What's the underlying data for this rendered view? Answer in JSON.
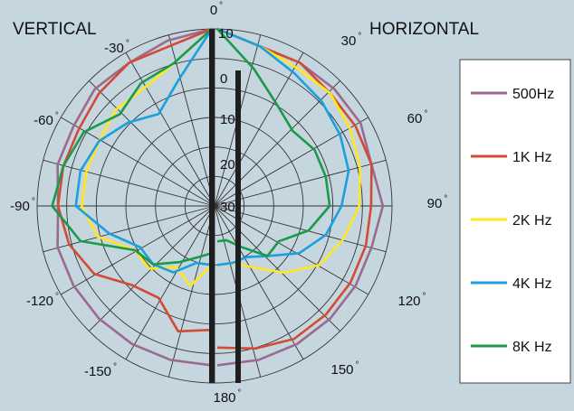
{
  "chart_data": {
    "type": "polar",
    "title": "",
    "panels": [
      "VERTICAL",
      "HORIZONTAL"
    ],
    "radial_ticks": [
      "10",
      "0",
      "10",
      "20",
      "30"
    ],
    "angle_labels": [
      "0",
      "30",
      "60",
      "90",
      "120",
      "150",
      "180",
      "-30",
      "-60",
      "-90",
      "-120",
      "-150"
    ],
    "degree_symbol": "°",
    "legend_placement": "right",
    "angle_step_deg": 15,
    "radial_range_db": [
      0,
      -30
    ],
    "series": [
      {
        "name": "500Hz",
        "color": "#9b6a8e",
        "horizontal": [
          [
            0,
            0
          ],
          [
            15,
            -2
          ],
          [
            30,
            -2
          ],
          [
            45,
            -2
          ],
          [
            60,
            -2
          ],
          [
            75,
            -3
          ],
          [
            90,
            -2
          ],
          [
            105,
            -3
          ],
          [
            120,
            -3
          ],
          [
            135,
            -3
          ],
          [
            150,
            -3
          ],
          [
            165,
            -3
          ],
          [
            180,
            -3
          ]
        ],
        "vertical": [
          [
            0,
            0
          ],
          [
            15,
            -1
          ],
          [
            30,
            -2
          ],
          [
            45,
            -2
          ],
          [
            60,
            -3
          ],
          [
            75,
            -3
          ],
          [
            90,
            -4
          ],
          [
            105,
            -3
          ],
          [
            120,
            -3
          ],
          [
            135,
            -3
          ],
          [
            150,
            -3
          ],
          [
            165,
            -3
          ],
          [
            180,
            -3
          ]
        ]
      },
      {
        "name": "1K Hz",
        "color": "#d24b35",
        "horizontal": [
          [
            0,
            0
          ],
          [
            15,
            -2
          ],
          [
            30,
            -2
          ],
          [
            45,
            -3
          ],
          [
            60,
            -3
          ],
          [
            75,
            -3
          ],
          [
            90,
            -4
          ],
          [
            105,
            -4
          ],
          [
            120,
            -4
          ],
          [
            135,
            -4
          ],
          [
            150,
            -4
          ],
          [
            165,
            -5
          ],
          [
            180,
            -6
          ]
        ],
        "vertical": [
          [
            0,
            0
          ],
          [
            15,
            -2
          ],
          [
            30,
            -2
          ],
          [
            45,
            -3
          ],
          [
            60,
            -4
          ],
          [
            75,
            -4
          ],
          [
            90,
            -4
          ],
          [
            105,
            -5
          ],
          [
            120,
            -7
          ],
          [
            135,
            -11
          ],
          [
            150,
            -12
          ],
          [
            165,
            -8
          ],
          [
            180,
            -9
          ]
        ]
      },
      {
        "name": "2K Hz",
        "color": "#ffe620",
        "horizontal": [
          [
            0,
            0
          ],
          [
            15,
            -2
          ],
          [
            30,
            -3
          ],
          [
            45,
            -3
          ],
          [
            60,
            -4
          ],
          [
            75,
            -5
          ],
          [
            90,
            -6
          ],
          [
            105,
            -8
          ],
          [
            120,
            -10
          ],
          [
            135,
            -14
          ],
          [
            150,
            -18
          ],
          [
            165,
            -20
          ],
          [
            180,
            -20
          ]
        ],
        "vertical": [
          [
            0,
            0
          ],
          [
            15,
            -5
          ],
          [
            30,
            -7
          ],
          [
            45,
            -7
          ],
          [
            60,
            -8
          ],
          [
            75,
            -8
          ],
          [
            90,
            -8
          ],
          [
            105,
            -10
          ],
          [
            120,
            -15
          ],
          [
            135,
            -15
          ],
          [
            150,
            -18
          ],
          [
            165,
            -16
          ],
          [
            180,
            -20
          ]
        ]
      },
      {
        "name": "4K Hz",
        "color": "#1aa0dc",
        "horizontal": [
          [
            0,
            0
          ],
          [
            15,
            -2
          ],
          [
            30,
            -4
          ],
          [
            45,
            -5
          ],
          [
            60,
            -6
          ],
          [
            75,
            -7
          ],
          [
            90,
            -9
          ],
          [
            105,
            -11
          ],
          [
            120,
            -14
          ],
          [
            135,
            -18
          ],
          [
            150,
            -20
          ],
          [
            165,
            -20
          ],
          [
            180,
            -20
          ]
        ],
        "vertical": [
          [
            0,
            0
          ],
          [
            15,
            -8
          ],
          [
            30,
            -12
          ],
          [
            45,
            -10
          ],
          [
            60,
            -8
          ],
          [
            75,
            -7
          ],
          [
            90,
            -7
          ],
          [
            105,
            -12
          ],
          [
            120,
            -16
          ],
          [
            135,
            -16
          ],
          [
            150,
            -17
          ],
          [
            165,
            -20
          ],
          [
            180,
            -20
          ]
        ]
      },
      {
        "name": "8K Hz",
        "color": "#1a9a4a",
        "horizontal": [
          [
            0,
            0
          ],
          [
            15,
            -6
          ],
          [
            30,
            -10
          ],
          [
            45,
            -12
          ],
          [
            60,
            -11
          ],
          [
            75,
            -11
          ],
          [
            90,
            -11
          ],
          [
            105,
            -14
          ],
          [
            120,
            -18
          ],
          [
            135,
            -18
          ],
          [
            150,
            -22
          ],
          [
            165,
            -24
          ],
          [
            180,
            -24
          ]
        ],
        "vertical": [
          [
            0,
            0
          ],
          [
            15,
            -5
          ],
          [
            30,
            -6
          ],
          [
            45,
            -8
          ],
          [
            60,
            -5
          ],
          [
            75,
            -4
          ],
          [
            90,
            -3
          ],
          [
            105,
            -7
          ],
          [
            120,
            -15
          ],
          [
            135,
            -16
          ],
          [
            150,
            -19
          ],
          [
            165,
            -21
          ],
          [
            180,
            -22
          ]
        ]
      }
    ]
  }
}
